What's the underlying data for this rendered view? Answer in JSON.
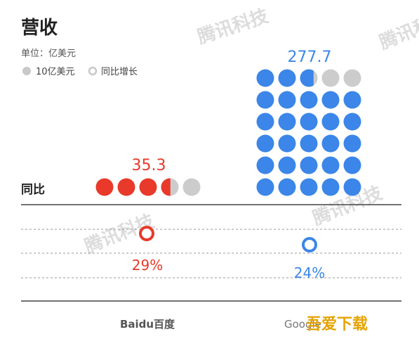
{
  "header": {
    "title": "营收",
    "unit": "单位：亿美元",
    "legend": [
      {
        "label": "10亿美元",
        "style": "filled"
      },
      {
        "label": "同比增长",
        "style": "ring"
      }
    ]
  },
  "yoy_axis_label": "同比",
  "chart_data": {
    "type": "dot-matrix",
    "unit_per_dot": 10,
    "categories": [
      "Baidu百度",
      "Google"
    ],
    "revenue": [
      35.3,
      277.7
    ],
    "revenue_labels": [
      "35.3",
      "277.7"
    ],
    "yoy_growth_pct": [
      29,
      24
    ],
    "yoy_labels": [
      "29%",
      "24%"
    ],
    "colors": [
      "#e8392a",
      "#3b86e8"
    ],
    "empty_dot_color": "#cccccc"
  },
  "watermarks": {
    "tencent": "腾讯科技",
    "download_site": "吾爱下载"
  }
}
